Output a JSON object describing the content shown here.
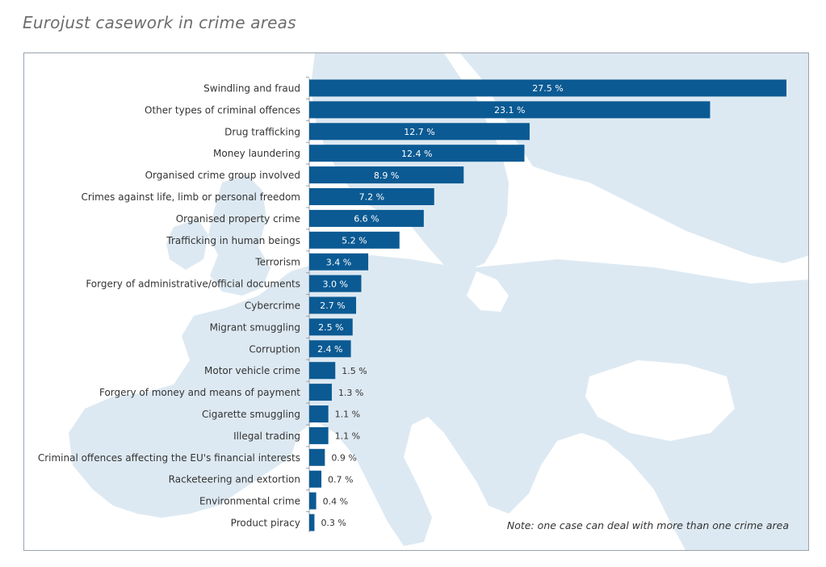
{
  "page": {
    "title": "Eurojust casework in crime areas",
    "note": "Note: one case can deal with more than one crime area"
  },
  "colors": {
    "bar": "#0b5a93",
    "map_land": "#dde9f2",
    "label_text": "#333333",
    "value_inside": "#ffffff",
    "value_outside": "#333333"
  },
  "chart_data": {
    "type": "bar",
    "orientation": "horizontal",
    "title": "Eurojust casework in crime areas",
    "value_suffix": " %",
    "xlim": [
      0,
      27.5
    ],
    "grid": false,
    "legend": "none",
    "categories": [
      "Swindling and fraud",
      "Other types of criminal offences",
      "Drug trafficking",
      "Money laundering",
      "Organised crime group involved",
      "Crimes against life, limb or personal freedom",
      "Organised property crime",
      "Trafficking in human beings",
      "Terrorism",
      "Forgery of administrative/official documents",
      "Cybercrime",
      "Migrant smuggling",
      "Corruption",
      "Motor vehicle crime",
      "Forgery of money and means of payment",
      "Cigarette smuggling",
      "Illegal trading",
      "Criminal offences affecting the EU's financial interests",
      "Racketeering and extortion",
      "Environmental crime",
      "Product piracy"
    ],
    "values": [
      27.5,
      23.1,
      12.7,
      12.4,
      8.9,
      7.2,
      6.6,
      5.2,
      3.4,
      3.0,
      2.7,
      2.5,
      2.4,
      1.5,
      1.3,
      1.1,
      1.1,
      0.9,
      0.7,
      0.4,
      0.3
    ],
    "value_labels": [
      "27.5 %",
      "23.1 %",
      "12.7 %",
      "12.4 %",
      "8.9 %",
      "7.2 %",
      "6.6 %",
      "5.2 %",
      "3.4 %",
      "3.0 %",
      "2.7 %",
      "2.5 %",
      "2.4 %",
      "1.5 %",
      "1.3 %",
      "1.1 %",
      "1.1 %",
      "0.9 %",
      "0.7 %",
      "0.4 %",
      "0.3 %"
    ]
  }
}
